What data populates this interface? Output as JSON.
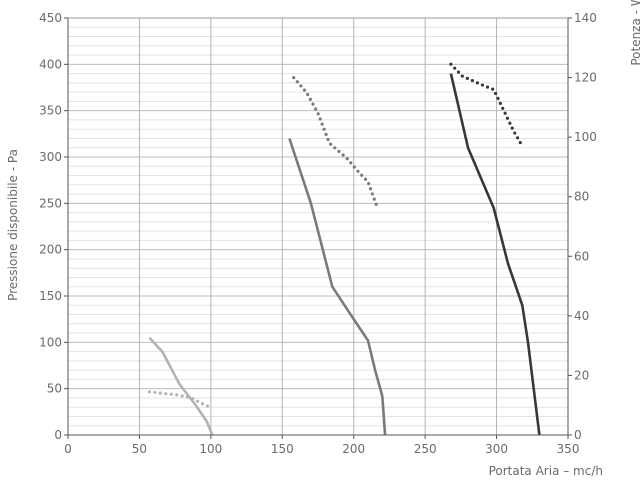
{
  "chart_data": {
    "type": "line",
    "xlabel": "Portata Aria – mc/h",
    "ylabel": "Pressione disponibile - Pa",
    "y2label": "Potenza - W",
    "xlim": [
      0,
      350
    ],
    "ylim": [
      0,
      450
    ],
    "y2lim": [
      0,
      140
    ],
    "x_ticks": [
      0,
      50,
      100,
      150,
      200,
      250,
      300,
      350
    ],
    "y_ticks": [
      0,
      50,
      100,
      150,
      200,
      250,
      300,
      350,
      400,
      450
    ],
    "y2_ticks": [
      0,
      20,
      40,
      60,
      80,
      100,
      120,
      140
    ],
    "grid": true,
    "series": [
      {
        "style": "solid",
        "axis": "left",
        "color": "#b3b3b3",
        "x": [
          57,
          66,
          78,
          89,
          97,
          101
        ],
        "y": [
          105,
          90,
          55,
          33,
          15,
          0
        ]
      },
      {
        "style": "dotted",
        "axis": "right",
        "color": "#b3b3b3",
        "x": [
          57,
          66,
          76,
          86,
          94,
          101
        ],
        "y": [
          14.5,
          14,
          13.5,
          12.5,
          10.5,
          9
        ]
      },
      {
        "style": "solid",
        "axis": "left",
        "color": "#7a7a7a",
        "x": [
          155,
          170,
          185,
          200,
          210,
          215,
          220,
          222
        ],
        "y": [
          320,
          250,
          160,
          125,
          102,
          70,
          42,
          0
        ]
      },
      {
        "style": "dotted",
        "axis": "right",
        "color": "#7a7a7a",
        "x": [
          158,
          167,
          175,
          183,
          195,
          204,
          210,
          216
        ],
        "y": [
          120,
          115,
          108,
          98,
          93,
          88,
          85,
          77
        ]
      },
      {
        "style": "solid",
        "axis": "left",
        "color": "#383838",
        "x": [
          268,
          280,
          298,
          308,
          318,
          322,
          330
        ],
        "y": [
          390,
          310,
          245,
          185,
          140,
          100,
          0
        ]
      },
      {
        "style": "dotted",
        "axis": "right",
        "color": "#383838",
        "x": [
          268,
          276,
          290,
          298,
          305,
          312,
          318
        ],
        "y": [
          124.5,
          120.5,
          117.5,
          116,
          109,
          102,
          97
        ]
      }
    ]
  }
}
